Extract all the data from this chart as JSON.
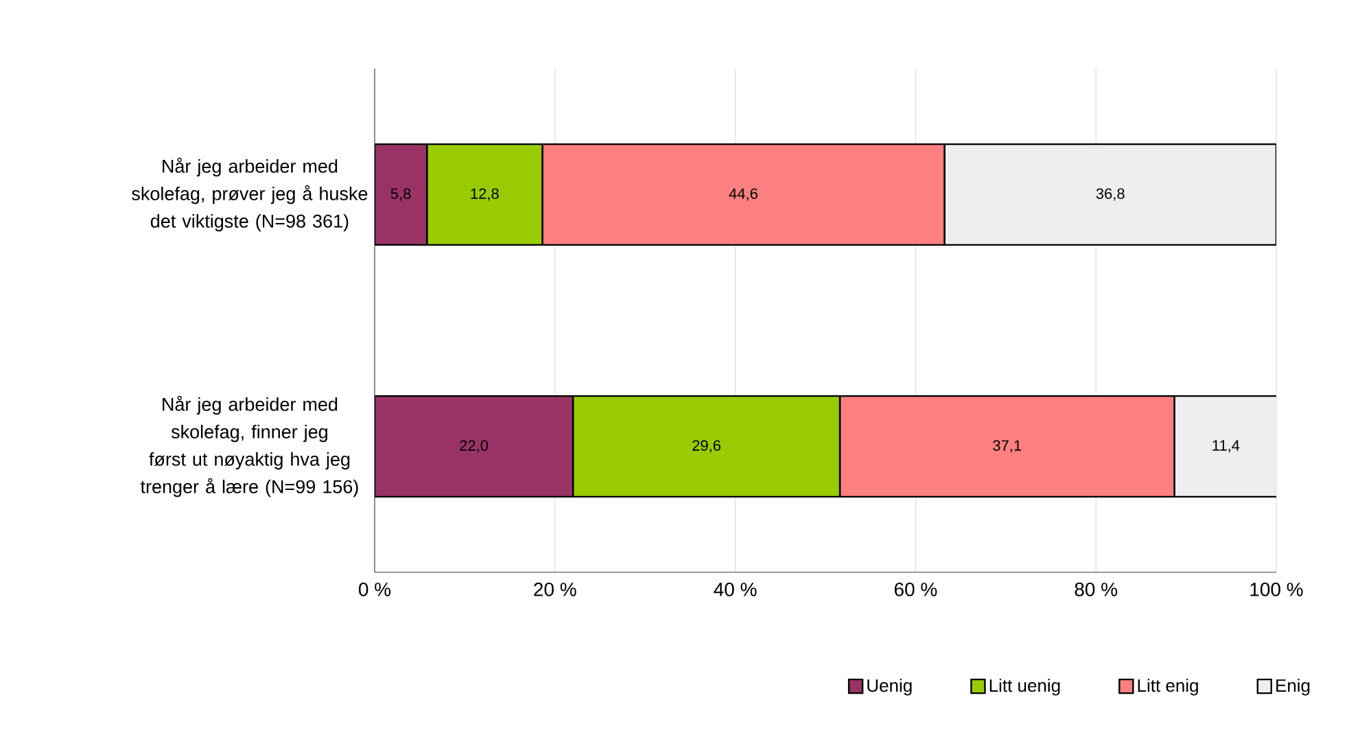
{
  "chart_data": {
    "type": "bar",
    "orientation": "horizontal",
    "stacked": true,
    "categories": [
      "Når jeg arbeider med skolefag, prøver jeg å huske det viktigste (N=98 361)",
      "Når jeg arbeider med skolefag, finner jeg først ut nøyaktig hva jeg trenger å lære (N=99 156)"
    ],
    "series": [
      {
        "name": "Uenig",
        "color": "#993366",
        "values": [
          5.8,
          22.0
        ],
        "value_labels": [
          "5,8",
          "22,0"
        ]
      },
      {
        "name": "Litt uenig",
        "color": "#99cc00",
        "values": [
          12.8,
          29.6
        ],
        "value_labels": [
          "12,8",
          "29,6"
        ]
      },
      {
        "name": "Litt enig",
        "color": "#ff8080",
        "values": [
          44.6,
          37.1
        ],
        "value_labels": [
          "44,6",
          "37,1"
        ]
      },
      {
        "name": "Enig",
        "color": "#eeeeee",
        "values": [
          36.8,
          11.4
        ],
        "value_labels": [
          "36,8",
          "11,4"
        ]
      }
    ],
    "xlim": [
      0,
      100
    ],
    "xticks": [
      {
        "value": 0,
        "label": "0 %"
      },
      {
        "value": 20,
        "label": "20 %"
      },
      {
        "value": 40,
        "label": "40 %"
      },
      {
        "value": 60,
        "label": "60 %"
      },
      {
        "value": 80,
        "label": "80 %"
      },
      {
        "value": 100,
        "label": "100 %"
      }
    ],
    "grid": "x",
    "legend": "bottom right"
  }
}
